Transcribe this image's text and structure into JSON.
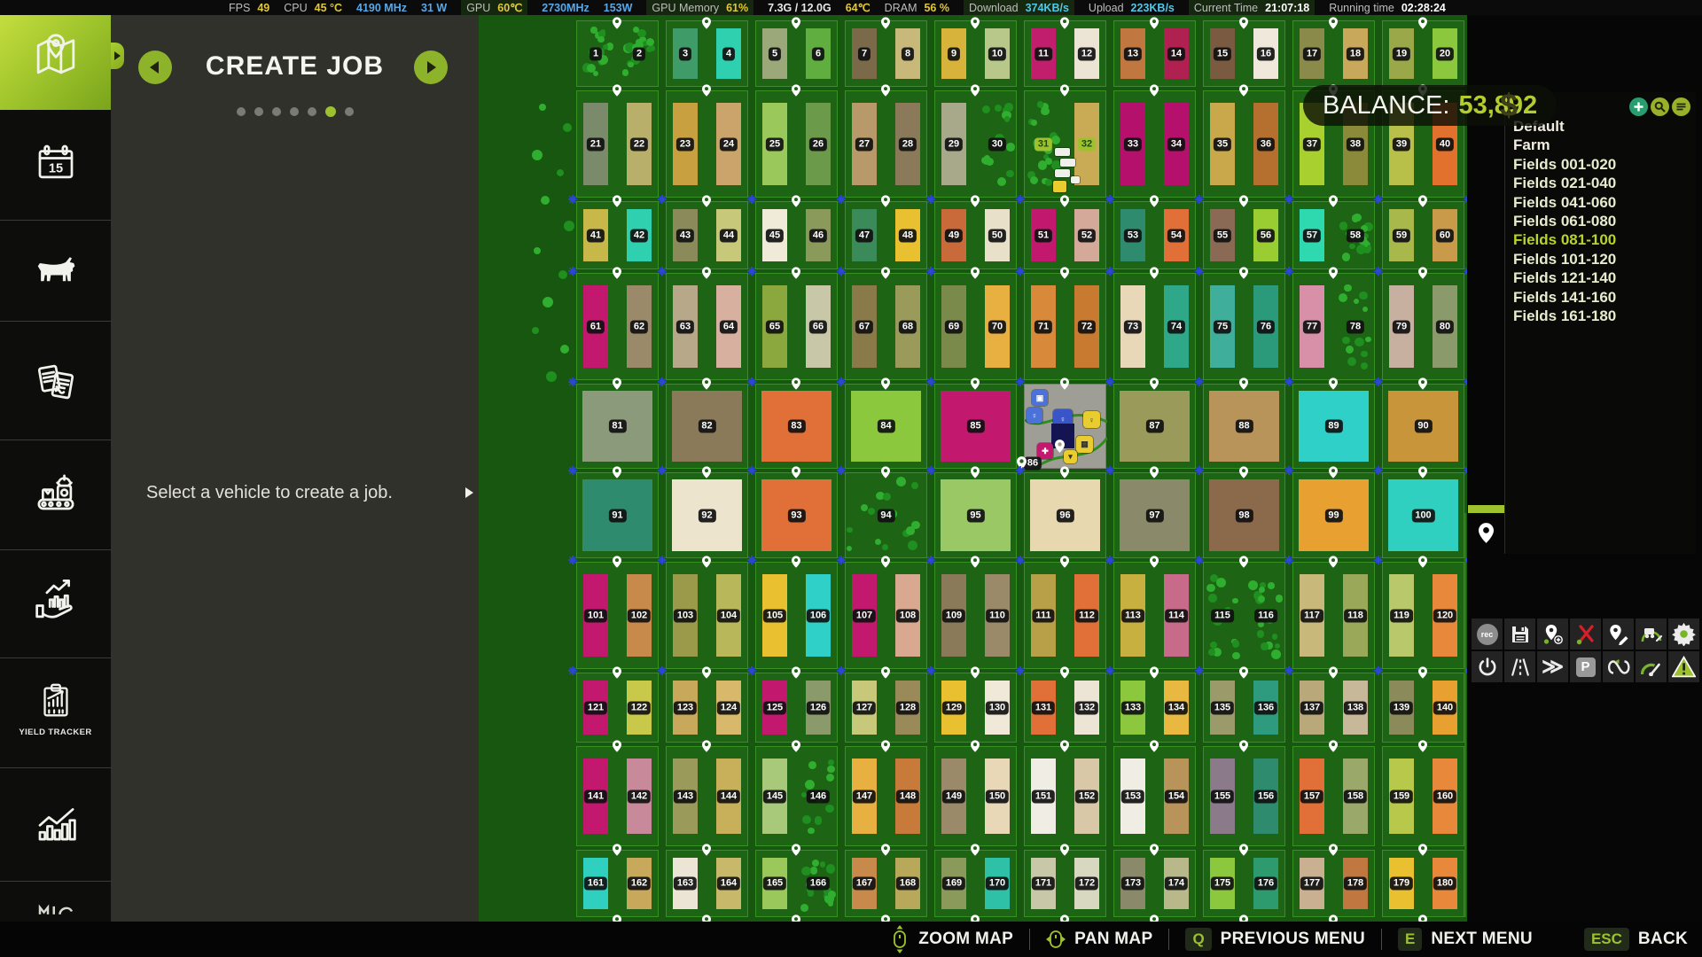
{
  "status_bar": {
    "items": [
      {
        "label": "FPS",
        "value": "49",
        "color": "#e0c838",
        "bg": false
      },
      {
        "label": "CPU",
        "value": "45 °C",
        "color": "#e0c838",
        "bg": false
      },
      {
        "label": "",
        "value": "4190 MHz",
        "color": "#58a8e8",
        "bg": false
      },
      {
        "label": "",
        "value": "31 W",
        "color": "#58a8e8",
        "bg": false
      },
      {
        "label": "GPU",
        "value": "60℃",
        "color": "#e0c838",
        "bg": true
      },
      {
        "label": "",
        "value": "2730MHz",
        "color": "#58a8e8",
        "bg": false
      },
      {
        "label": "",
        "value": "153W",
        "color": "#58a8e8",
        "bg": false
      },
      {
        "label": "GPU Memory",
        "value": "61%",
        "color": "#e0c838",
        "bg": true
      },
      {
        "label": "",
        "value": "7.3G / 12.0G",
        "color": "#e8e8e8",
        "bg": false
      },
      {
        "label": "",
        "value": "64℃",
        "color": "#e0c838",
        "bg": false
      },
      {
        "label": "DRAM",
        "value": "56 %",
        "color": "#e0c838",
        "bg": false
      },
      {
        "label": "Download",
        "value": "374KB/s",
        "color": "#50c8e8",
        "bg": true
      },
      {
        "label": "Upload",
        "value": "223KB/s",
        "color": "#50c8e8",
        "bg": false
      },
      {
        "label": "Current Time",
        "value": "21:07:18",
        "color": "#ffffff",
        "bg": true
      },
      {
        "label": "Running time",
        "value": "02:28:24",
        "color": "#ffffff",
        "bg": false
      }
    ]
  },
  "sidebar": {
    "active": "map",
    "items": [
      {
        "id": "map",
        "icon": "map-icon"
      },
      {
        "id": "calendar",
        "icon": "calendar-icon",
        "calendar_day": "15"
      },
      {
        "id": "animals",
        "icon": "cow-icon"
      },
      {
        "id": "contracts",
        "icon": "contracts-icon"
      },
      {
        "id": "production",
        "icon": "production-icon"
      },
      {
        "id": "finances",
        "icon": "finances-icon"
      },
      {
        "id": "yield-tracker",
        "icon": "yield-tracker-icon",
        "label": "YIELD TRACKER"
      },
      {
        "id": "statistics",
        "icon": "statistics-icon"
      }
    ]
  },
  "create_job_panel": {
    "title": "CREATE JOB",
    "dot_count": 7,
    "active_dot_index": 5,
    "hint": "Select a vehicle to create a job."
  },
  "balance": {
    "label": "BALANCE:",
    "value": "53,892",
    "currency": "$",
    "value_color": "#b4cc2e"
  },
  "field_groups": {
    "item_color": "#e8eccd",
    "highlight_color": "#b8d428",
    "plain_color": "#f0ede0",
    "buttons": [
      {
        "id": "add"
      },
      {
        "id": "search"
      },
      {
        "id": "filter"
      }
    ],
    "items": [
      {
        "label": "Default",
        "plain": true
      },
      {
        "label": "Farm",
        "plain": true
      },
      {
        "label": "Fields 001-020"
      },
      {
        "label": "Fields 021-040"
      },
      {
        "label": "Fields 041-060"
      },
      {
        "label": "Fields 061-080"
      },
      {
        "label": "Fields 081-100",
        "highlighted": true
      },
      {
        "label": "Fields 101-120"
      },
      {
        "label": "Fields 121-140"
      },
      {
        "label": "Fields 141-160"
      },
      {
        "label": "Fields 161-180"
      }
    ]
  },
  "map": {
    "background": "#175710",
    "block_fill": "#1d6414",
    "pin_color": "#ffffff",
    "cross_color": "#2b46d8",
    "tree_colors": [
      "#2fae2f",
      "#1f8f1f"
    ],
    "owned_badge_fields": [
      31,
      32
    ],
    "farmyard_field": 86,
    "field_colors": [
      "F",
      "F",
      "#3f9b68",
      "#2fd0b0",
      "#9aa87a",
      "#5fae3f",
      "#7a6a4a",
      "#c8b87a",
      "#d8b33c",
      "#b8c88a",
      "#c21e6e",
      "#ece4d4",
      "#c07840",
      "#b02050",
      "#7a5a40",
      "#f0e8da",
      "#8a8a4a",
      "#c8a85a",
      "#9aa84a",
      "#8bc83e",
      "#7a8a6a",
      "#b8b06a",
      "#c8a040",
      "#caa46a",
      "#9ac85a",
      "#6a9a4a",
      "#b89a6a",
      "#8a7a5a",
      "#a8a88a",
      "F",
      "F",
      "#c9ab55",
      "#b5106b",
      "#b5106b",
      "#c9a84c",
      "#b5702f",
      "#a8d12f",
      "#8a8a3a",
      "#b8c04a",
      "#e2712e",
      "#c8b84a",
      "#2fd0b0",
      "#8a8a5a",
      "#c8c87a",
      "#f0ead8",
      "#8a9a5a",
      "#3a8a5a",
      "#e8c030",
      "#c86a3a",
      "#e8e0c8",
      "#c2186e",
      "#d4a99a",
      "#2e8b6e",
      "#e07038",
      "#8a6a55",
      "#9acd32",
      "#2ed9b0",
      "F",
      "#a8b84a",
      "#c89a4a",
      "#c2186e",
      "#9a8a6a",
      "#b8a88a",
      "#d8b0a0",
      "#8ba83e",
      "#c8c8a8",
      "#8a7a4a",
      "#9a9a5a",
      "#7a8a4a",
      "#e8b040",
      "#d88a3a",
      "#c87a30",
      "#e8d8b8",
      "#2fa88a",
      "#3fae9a",
      "#2a9a7a",
      "#d890a8",
      "F",
      "#c8b0a0",
      "#8a9a6a",
      "#8a9a7a",
      "#8a7a5a",
      "#e07038",
      "#8bc83e",
      "#c2186e",
      "Y",
      "#9a9a5a",
      "#b8935a",
      "#2fd0c8",
      "#c8953a",
      "#2e8b6e",
      "#ece4cc",
      "#e07038",
      "F",
      "#9ac864",
      "#e8d8b0",
      "#8a8a6a",
      "#8a6a4a",
      "#e8a030",
      "#2fd0c0",
      "#c2186e",
      "#c88a4a",
      "#9a9a4a",
      "#b8b85a",
      "#e8c030",
      "#2fd0c8",
      "#c2186e",
      "#d8a890",
      "#8a7a5a",
      "#9a8a6a",
      "#b8a048",
      "#e07038",
      "#c8b040",
      "#c86a8a",
      "F",
      "F",
      "#c8b87a",
      "#9aa85a",
      "#b8c86a",
      "#e8883a",
      "#c2186e",
      "#c8c84a",
      "#c8a85a",
      "#d8b86a",
      "#c2186e",
      "#8a9a6a",
      "#c8c87a",
      "#9a8a5a",
      "#e8c030",
      "#f0e8d8",
      "#e07038",
      "#ece4d4",
      "#8bc83e",
      "#e8b840",
      "#9a9a6a",
      "#2e9b7e",
      "#b8a87a",
      "#c8b89a",
      "#8a8a5a",
      "#e8a030",
      "#c2186e",
      "#c88a9a",
      "#9a9a5a",
      "#c8b05a",
      "#a8c87a",
      "F",
      "#e8b040",
      "#c87a3a",
      "#9a8a6a",
      "#e8d8b8",
      "#f0ede4",
      "#d8c8a8",
      "#f0ede4",
      "#b8935a",
      "#8a7a8a",
      "#2e8b6e",
      "#e07038",
      "#9aa86a",
      "#b8c84a",
      "#e8883a",
      "#2fd0c0",
      "#c8a85a",
      "#ece4d4",
      "#c8b86a",
      "#9ac85a",
      "F",
      "#c88a4a",
      "#b8a85a",
      "#8a9a5a",
      "#2fc0a8",
      "#c8c8a8",
      "#d8d8c0",
      "#8a8a6a",
      "#b8b88a",
      "#8bc83e",
      "#2e9b6e",
      "#c8b090",
      "#c07840",
      "#e8c030",
      "#e8883a"
    ]
  },
  "hud": {
    "record_label": "rec",
    "parking_label": "P",
    "rows": [
      [
        {
          "name": "record"
        },
        {
          "name": "save"
        },
        {
          "name": "waypoint-add"
        },
        {
          "name": "route-delete"
        },
        {
          "name": "waypoint-edit"
        },
        {
          "name": "vehicle-speed"
        },
        {
          "name": "settings"
        }
      ],
      [
        {
          "name": "power"
        },
        {
          "name": "road-mode"
        },
        {
          "name": "fast-forward"
        },
        {
          "name": "parking"
        },
        {
          "name": "loop-route"
        },
        {
          "name": "speed-gauge"
        },
        {
          "name": "warning"
        }
      ]
    ]
  },
  "bottom_bar": {
    "key_color": "#9ec22e",
    "items": [
      {
        "icon": "mouse-zoom-icon",
        "key": "",
        "label": "ZOOM MAP"
      },
      {
        "icon": "mouse-pan-icon",
        "key": "",
        "label": "PAN MAP"
      },
      {
        "icon": "",
        "key": "Q",
        "label": "PREVIOUS MENU"
      },
      {
        "icon": "",
        "key": "E",
        "label": "NEXT MENU"
      },
      {
        "icon": "",
        "key": "ESC",
        "label": "BACK"
      }
    ]
  }
}
